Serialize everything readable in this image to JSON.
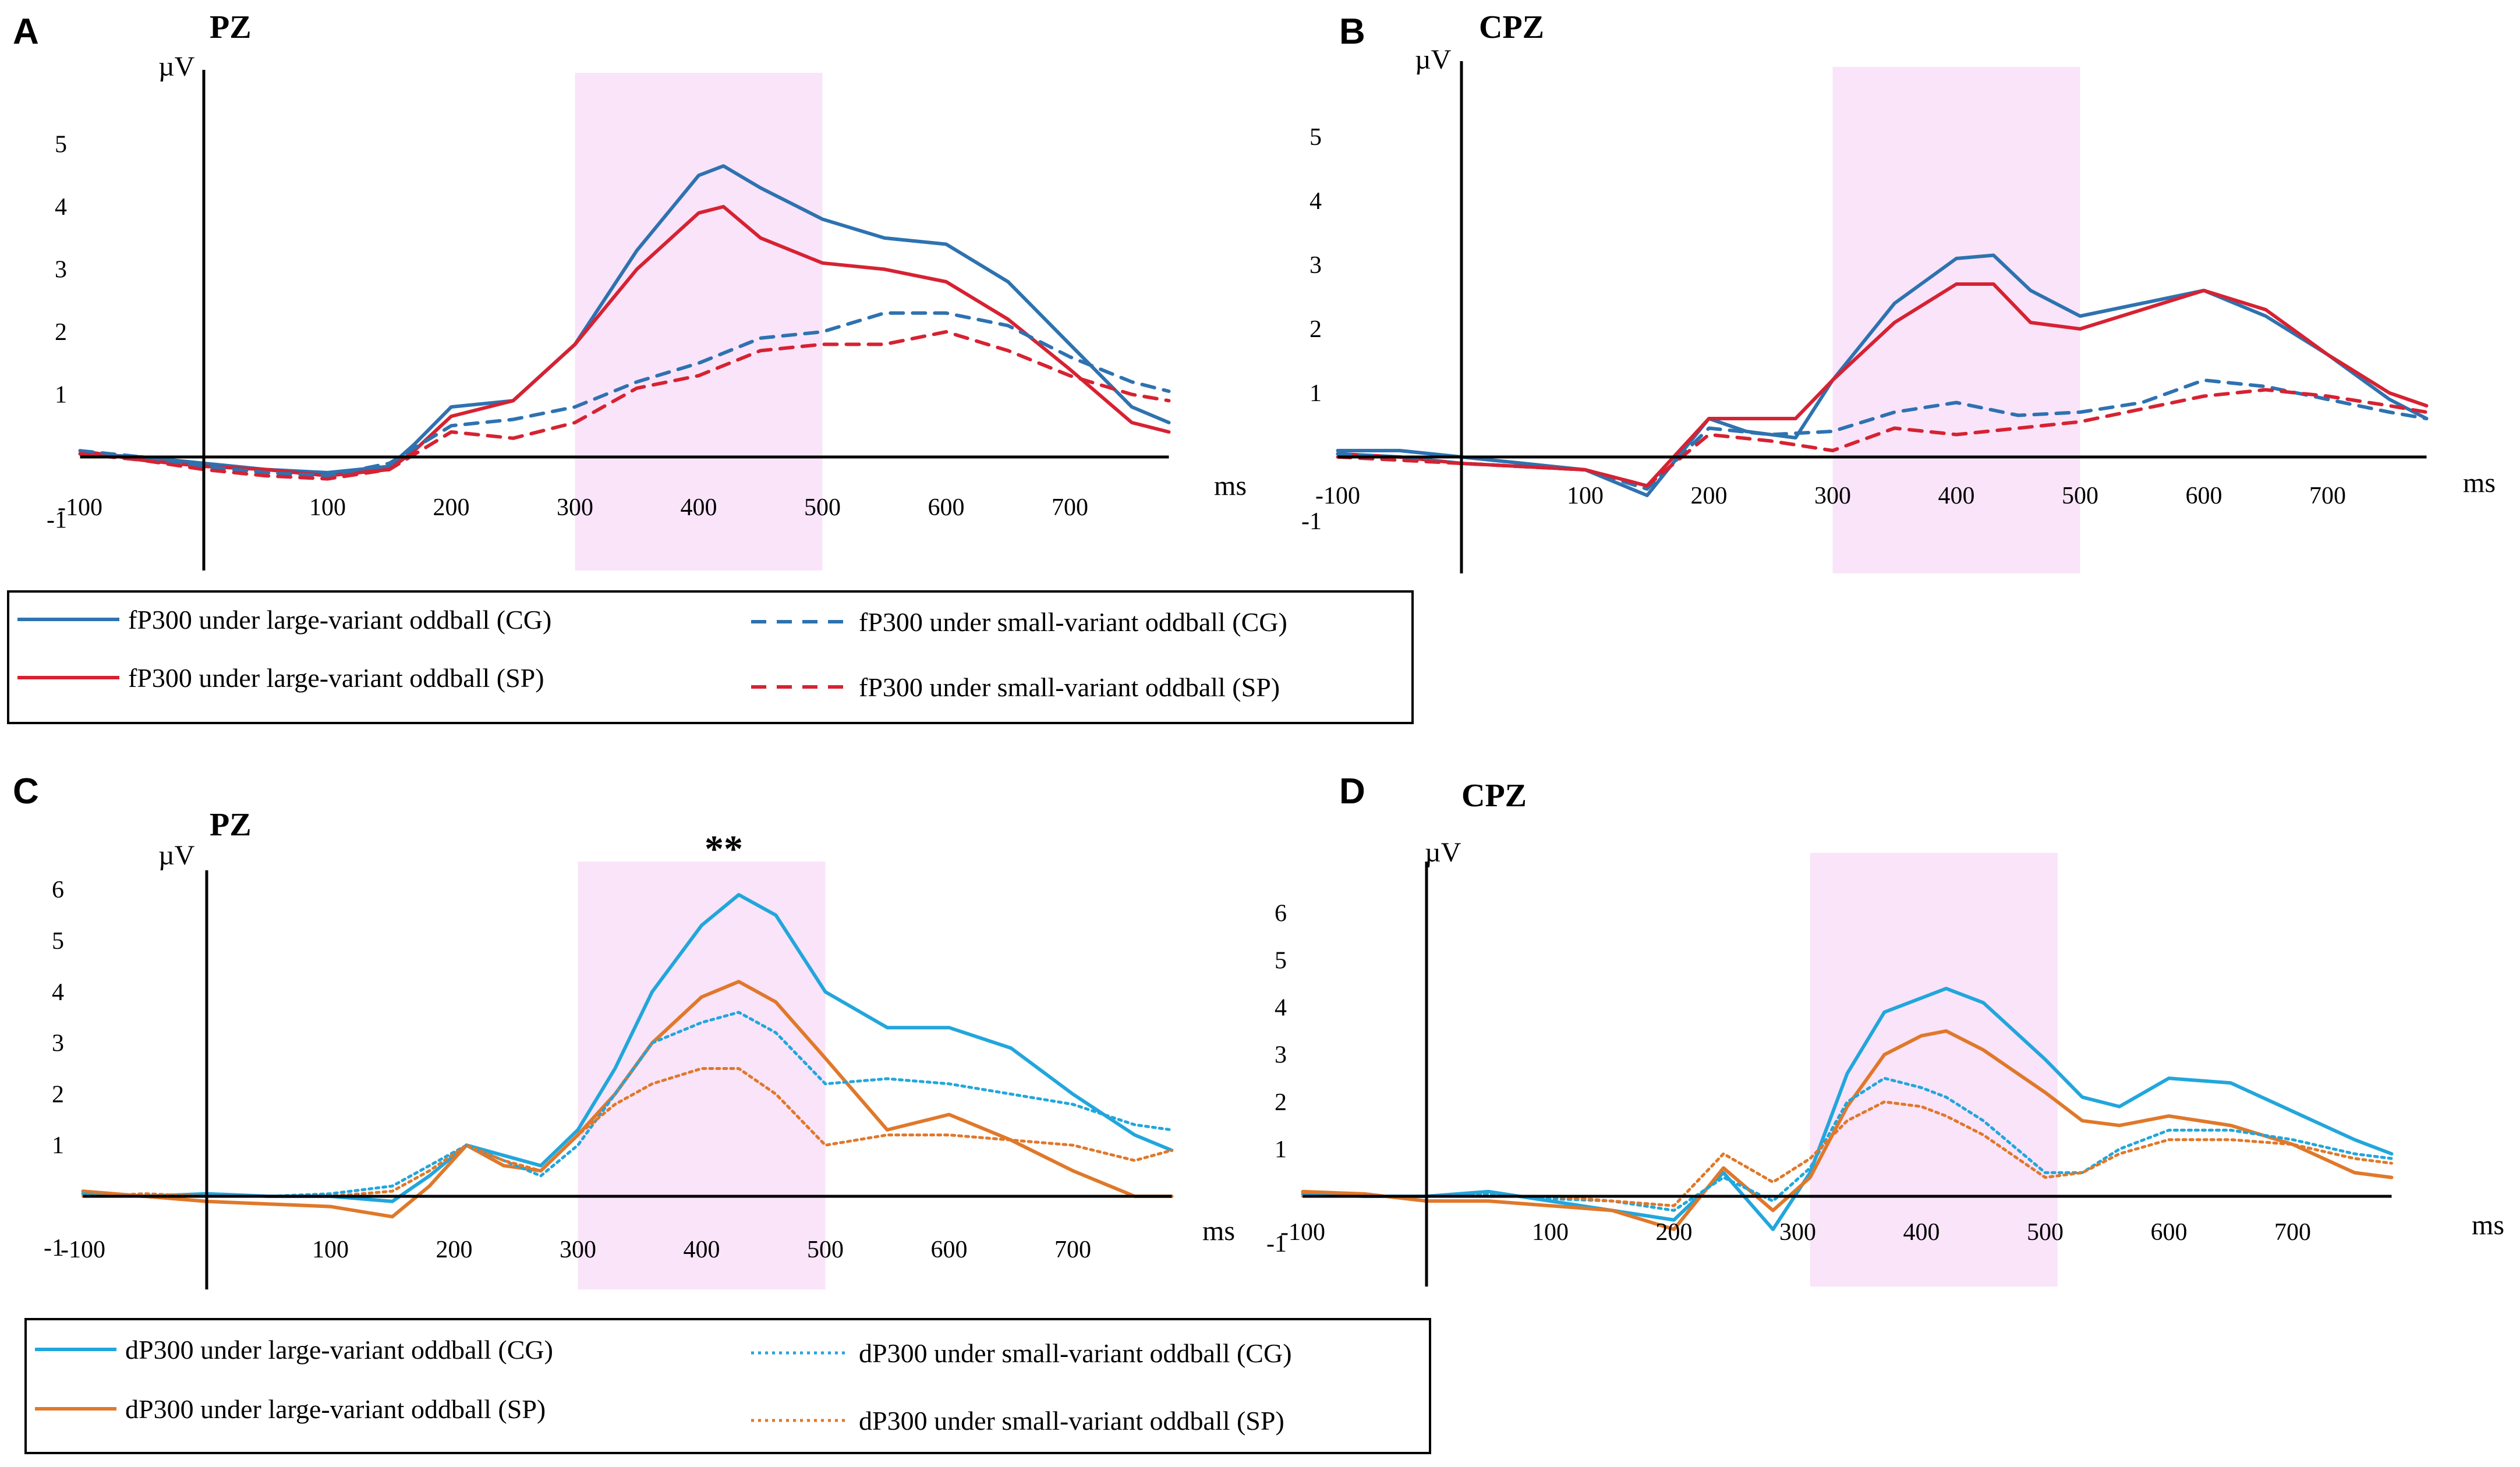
{
  "chart_data": [
    {
      "type": "line",
      "panel": "A",
      "title": "PZ",
      "ylabel": "µV",
      "xlabel": "ms",
      "xlim": [
        -100,
        780
      ],
      "ylim": [
        -1.8,
        6.2
      ],
      "yticks": [
        -1,
        1,
        2,
        3,
        4,
        5
      ],
      "xticks": [
        -100,
        100,
        200,
        300,
        400,
        500,
        600,
        700
      ],
      "highlight": [
        300,
        500
      ],
      "significance": "",
      "series": [
        {
          "name": "fP300 under large-variant oddball (CG)",
          "color": "#2e72b0",
          "style": "solid",
          "x": [
            -100,
            -50,
            0,
            50,
            100,
            150,
            170,
            200,
            250,
            300,
            350,
            400,
            420,
            450,
            500,
            550,
            600,
            650,
            700,
            750,
            780
          ],
          "y": [
            0.05,
            0.0,
            -0.1,
            -0.2,
            -0.25,
            -0.15,
            0.2,
            0.8,
            0.9,
            1.8,
            3.3,
            4.5,
            4.65,
            4.3,
            3.8,
            3.5,
            3.4,
            2.8,
            1.8,
            0.8,
            0.55
          ]
        },
        {
          "name": "fP300 under large-variant oddball (SP)",
          "color": "#d62232",
          "style": "solid",
          "x": [
            -100,
            -50,
            0,
            50,
            100,
            150,
            170,
            200,
            250,
            300,
            350,
            400,
            420,
            450,
            500,
            550,
            600,
            650,
            700,
            750,
            780
          ],
          "y": [
            0.1,
            -0.05,
            -0.15,
            -0.2,
            -0.3,
            -0.2,
            0.1,
            0.65,
            0.9,
            1.8,
            3.0,
            3.9,
            4.0,
            3.5,
            3.1,
            3.0,
            2.8,
            2.2,
            1.4,
            0.55,
            0.4
          ]
        },
        {
          "name": "fP300 under small-variant oddball (CG)",
          "color": "#2e72b0",
          "style": "dashed",
          "x": [
            -100,
            -50,
            0,
            50,
            100,
            150,
            200,
            250,
            300,
            350,
            400,
            450,
            500,
            550,
            600,
            650,
            700,
            750,
            780
          ],
          "y": [
            0.1,
            0.0,
            -0.15,
            -0.25,
            -0.3,
            -0.1,
            0.5,
            0.6,
            0.8,
            1.2,
            1.5,
            1.9,
            2.0,
            2.3,
            2.3,
            2.1,
            1.6,
            1.2,
            1.05
          ]
        },
        {
          "name": "fP300 under small-variant oddball (SP)",
          "color": "#d62232",
          "style": "dashed",
          "x": [
            -100,
            -50,
            0,
            50,
            100,
            150,
            200,
            250,
            300,
            350,
            400,
            450,
            500,
            550,
            600,
            650,
            700,
            750,
            780
          ],
          "y": [
            0.05,
            -0.05,
            -0.2,
            -0.3,
            -0.35,
            -0.2,
            0.4,
            0.3,
            0.55,
            1.1,
            1.3,
            1.7,
            1.8,
            1.8,
            2.0,
            1.7,
            1.3,
            1.0,
            0.9
          ]
        }
      ]
    },
    {
      "type": "line",
      "panel": "B",
      "title": "CPZ",
      "ylabel": "µV",
      "xlabel": "ms",
      "xlim": [
        -100,
        780
      ],
      "ylim": [
        -1.8,
        6.2
      ],
      "yticks": [
        -1,
        1,
        2,
        3,
        4,
        5
      ],
      "xticks": [
        -100,
        100,
        200,
        300,
        400,
        500,
        600,
        700
      ],
      "highlight": [
        300,
        500
      ],
      "significance": "",
      "series": [
        {
          "name": "fP300 under large-variant oddball (CG)",
          "color": "#2e72b0",
          "style": "solid",
          "x": [
            -100,
            -50,
            0,
            50,
            100,
            150,
            200,
            230,
            270,
            300,
            350,
            400,
            430,
            460,
            500,
            550,
            600,
            650,
            700,
            750,
            780
          ],
          "y": [
            0.1,
            0.1,
            0.0,
            -0.1,
            -0.2,
            -0.6,
            0.6,
            0.4,
            0.3,
            1.2,
            2.4,
            3.1,
            3.15,
            2.6,
            2.2,
            2.4,
            2.6,
            2.2,
            1.6,
            0.9,
            0.6
          ]
        },
        {
          "name": "fP300 under large-variant oddball (SP)",
          "color": "#d62232",
          "style": "solid",
          "x": [
            -100,
            -50,
            0,
            50,
            100,
            150,
            200,
            230,
            270,
            300,
            350,
            400,
            430,
            460,
            500,
            550,
            600,
            650,
            700,
            750,
            780
          ],
          "y": [
            0.05,
            0.0,
            -0.1,
            -0.15,
            -0.2,
            -0.45,
            0.6,
            0.6,
            0.6,
            1.2,
            2.1,
            2.7,
            2.7,
            2.1,
            2.0,
            2.3,
            2.6,
            2.3,
            1.6,
            1.0,
            0.8
          ]
        },
        {
          "name": "fP300 under small-variant oddball (CG)",
          "color": "#2e72b0",
          "style": "dashed",
          "x": [
            -100,
            -50,
            0,
            50,
            100,
            150,
            200,
            250,
            300,
            350,
            400,
            450,
            500,
            550,
            600,
            650,
            700,
            750,
            780
          ],
          "y": [
            0.05,
            0.0,
            -0.1,
            -0.15,
            -0.2,
            -0.5,
            0.45,
            0.35,
            0.4,
            0.7,
            0.85,
            0.65,
            0.7,
            0.85,
            1.2,
            1.1,
            0.9,
            0.7,
            0.6
          ]
        },
        {
          "name": "fP300 under small-variant oddball (SP)",
          "color": "#d62232",
          "style": "dashed",
          "x": [
            -100,
            -50,
            0,
            50,
            100,
            150,
            200,
            250,
            300,
            350,
            400,
            450,
            500,
            550,
            600,
            650,
            700,
            750,
            780
          ],
          "y": [
            0.0,
            -0.05,
            -0.1,
            -0.15,
            -0.2,
            -0.45,
            0.35,
            0.25,
            0.1,
            0.45,
            0.35,
            0.45,
            0.55,
            0.75,
            0.95,
            1.05,
            0.95,
            0.8,
            0.7
          ]
        }
      ]
    },
    {
      "type": "line",
      "panel": "C",
      "title": "PZ",
      "ylabel": "µV",
      "xlabel": "ms",
      "xlim": [
        -100,
        780
      ],
      "ylim": [
        -1.8,
        6.4
      ],
      "yticks": [
        -1,
        1,
        2,
        3,
        4,
        5,
        6
      ],
      "xticks": [
        -100,
        100,
        200,
        300,
        400,
        500,
        600,
        700
      ],
      "highlight": [
        300,
        500
      ],
      "significance": "**",
      "series": [
        {
          "name": "dP300 under large-variant oddball (CG)",
          "color": "#22a6dc",
          "style": "solid",
          "x": [
            -100,
            -50,
            0,
            50,
            100,
            150,
            180,
            210,
            240,
            270,
            300,
            330,
            360,
            400,
            430,
            460,
            500,
            550,
            600,
            650,
            700,
            750,
            780
          ],
          "y": [
            0.05,
            0.0,
            0.05,
            0.0,
            0.0,
            -0.1,
            0.4,
            1.0,
            0.8,
            0.6,
            1.3,
            2.5,
            4.0,
            5.3,
            5.9,
            5.5,
            4.0,
            3.3,
            3.3,
            2.9,
            2.0,
            1.2,
            0.9
          ]
        },
        {
          "name": "dP300 under large-variant oddball (SP)",
          "color": "#e0782a",
          "style": "solid",
          "x": [
            -100,
            -50,
            0,
            50,
            100,
            150,
            180,
            210,
            240,
            270,
            300,
            330,
            360,
            400,
            430,
            460,
            500,
            550,
            600,
            650,
            700,
            750,
            780
          ],
          "y": [
            0.1,
            0.0,
            -0.1,
            -0.15,
            -0.2,
            -0.4,
            0.2,
            1.0,
            0.6,
            0.5,
            1.2,
            2.0,
            3.0,
            3.9,
            4.2,
            3.8,
            2.7,
            1.3,
            1.6,
            1.1,
            0.5,
            0.0,
            0.0
          ]
        },
        {
          "name": "dP300 under small-variant oddball (CG)",
          "color": "#22a6dc",
          "style": "dotted",
          "x": [
            -100,
            -50,
            0,
            50,
            100,
            150,
            180,
            210,
            240,
            270,
            300,
            330,
            360,
            400,
            430,
            460,
            500,
            550,
            600,
            650,
            700,
            750,
            780
          ],
          "y": [
            0.05,
            0.0,
            0.0,
            0.0,
            0.05,
            0.2,
            0.6,
            1.0,
            0.7,
            0.4,
            1.0,
            2.0,
            3.0,
            3.4,
            3.6,
            3.2,
            2.2,
            2.3,
            2.2,
            2.0,
            1.8,
            1.4,
            1.3
          ]
        },
        {
          "name": "dP300 under small-variant oddball (SP)",
          "color": "#e0782a",
          "style": "dotted",
          "x": [
            -100,
            -50,
            0,
            50,
            100,
            150,
            180,
            210,
            240,
            270,
            300,
            330,
            360,
            400,
            430,
            460,
            500,
            550,
            600,
            650,
            700,
            750,
            780
          ],
          "y": [
            0.0,
            0.05,
            0.0,
            0.0,
            0.0,
            0.1,
            0.5,
            1.0,
            0.7,
            0.5,
            1.2,
            1.8,
            2.2,
            2.5,
            2.5,
            2.0,
            1.0,
            1.2,
            1.2,
            1.1,
            1.0,
            0.7,
            0.9
          ]
        }
      ]
    },
    {
      "type": "line",
      "panel": "D",
      "title": "CPZ",
      "ylabel": "µV",
      "xlabel": "ms",
      "xlim": [
        -100,
        780
      ],
      "ylim": [
        -1.8,
        7.2
      ],
      "yticks": [
        -1,
        1,
        2,
        3,
        4,
        5,
        6
      ],
      "xticks": [
        -100,
        100,
        200,
        300,
        400,
        500,
        600,
        700
      ],
      "highlight": [
        310,
        510
      ],
      "significance": "",
      "series": [
        {
          "name": "dP300 under large-variant oddball (CG)",
          "color": "#22a6dc",
          "style": "solid",
          "x": [
            -100,
            -50,
            0,
            50,
            100,
            150,
            200,
            240,
            280,
            310,
            340,
            370,
            400,
            420,
            450,
            500,
            530,
            560,
            600,
            650,
            700,
            750,
            780
          ],
          "y": [
            0.05,
            0.0,
            0.0,
            0.1,
            -0.1,
            -0.3,
            -0.5,
            0.5,
            -0.7,
            0.5,
            2.6,
            3.9,
            4.2,
            4.4,
            4.1,
            2.9,
            2.1,
            1.9,
            2.5,
            2.4,
            1.8,
            1.2,
            0.9
          ]
        },
        {
          "name": "dP300 under large-variant oddball (SP)",
          "color": "#e0782a",
          "style": "solid",
          "x": [
            -100,
            -50,
            0,
            50,
            100,
            150,
            200,
            240,
            280,
            310,
            340,
            370,
            400,
            420,
            450,
            500,
            530,
            560,
            600,
            650,
            700,
            750,
            780
          ],
          "y": [
            0.1,
            0.05,
            -0.1,
            -0.1,
            -0.2,
            -0.3,
            -0.7,
            0.6,
            -0.3,
            0.4,
            1.9,
            3.0,
            3.4,
            3.5,
            3.1,
            2.2,
            1.6,
            1.5,
            1.7,
            1.5,
            1.1,
            0.5,
            0.4
          ]
        },
        {
          "name": "dP300 under small-variant oddball (CG)",
          "color": "#22a6dc",
          "style": "dotted",
          "x": [
            -100,
            -50,
            0,
            50,
            100,
            150,
            200,
            240,
            280,
            310,
            340,
            370,
            400,
            420,
            450,
            500,
            530,
            560,
            600,
            650,
            700,
            750,
            780
          ],
          "y": [
            0.0,
            0.0,
            0.0,
            0.05,
            -0.05,
            -0.1,
            -0.3,
            0.4,
            -0.1,
            0.6,
            2.0,
            2.5,
            2.3,
            2.1,
            1.6,
            0.5,
            0.5,
            1.0,
            1.4,
            1.4,
            1.2,
            0.9,
            0.8
          ]
        },
        {
          "name": "dP300 under small-variant oddball (SP)",
          "color": "#e0782a",
          "style": "dotted",
          "x": [
            -100,
            -50,
            0,
            50,
            100,
            150,
            200,
            240,
            280,
            310,
            340,
            370,
            400,
            420,
            450,
            500,
            530,
            560,
            600,
            650,
            700,
            750,
            780
          ],
          "y": [
            0.0,
            0.0,
            0.0,
            0.0,
            0.0,
            -0.1,
            -0.2,
            0.9,
            0.3,
            0.8,
            1.6,
            2.0,
            1.9,
            1.7,
            1.3,
            0.4,
            0.5,
            0.9,
            1.2,
            1.2,
            1.1,
            0.8,
            0.7
          ]
        }
      ]
    }
  ],
  "legends": [
    {
      "items": [
        {
          "label": "fP300 under large-variant oddball (CG)",
          "color": "#2e72b0",
          "style": "solid"
        },
        {
          "label": "fP300 under small-variant oddball (CG)",
          "color": "#2e72b0",
          "style": "dashed"
        },
        {
          "label": "fP300 under large-variant oddball (SP)",
          "color": "#d62232",
          "style": "solid"
        },
        {
          "label": "fP300 under small-variant oddball (SP)",
          "color": "#d62232",
          "style": "dashed"
        }
      ]
    },
    {
      "items": [
        {
          "label": "dP300 under large-variant oddball (CG)",
          "color": "#22a6dc",
          "style": "solid"
        },
        {
          "label": "dP300 under small-variant oddball (CG)",
          "color": "#22a6dc",
          "style": "dotted"
        },
        {
          "label": "dP300 under large-variant oddball (SP)",
          "color": "#e0782a",
          "style": "solid"
        },
        {
          "label": "dP300 under small-variant oddball (SP)",
          "color": "#e0782a",
          "style": "dotted"
        }
      ]
    }
  ]
}
